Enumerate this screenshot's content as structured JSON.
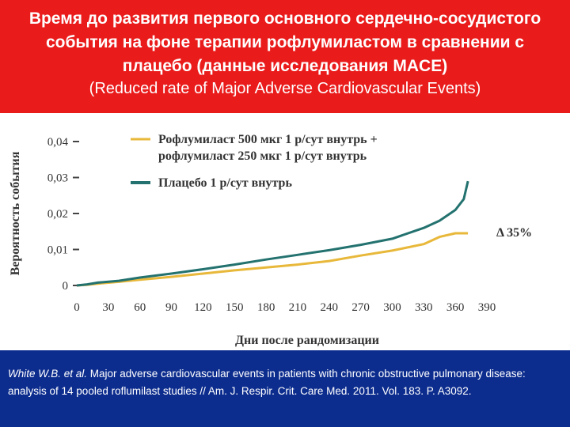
{
  "header": {
    "title": "Время до развития первого основного сердечно-сосудистого события на фоне терапии рофлумиластом в сравнении с плацебо (данные исследования MACE)",
    "subtitle": "(Reduced rate of Major Adverse Cardiovascular Events)",
    "bg_color": "#ea1b1b"
  },
  "footer": {
    "citation_author": "White W.B. et al.",
    "citation_rest": " Major adverse cardiovascular events in patients with chronic obstructive pulmonary disease: analysis of 14 pooled roflumilast studies // Am. J. Respir. Crit. Care Med. 2011. Vol. 183. P. A3092.",
    "bg_color": "#0d2d8e"
  },
  "chart_data": {
    "type": "line",
    "ylabel": "Вероятность события",
    "xlabel": "Дни после рандомизации",
    "x_ticks": [
      0,
      30,
      60,
      90,
      120,
      150,
      180,
      210,
      240,
      270,
      300,
      330,
      360,
      390
    ],
    "x_tick_labels": [
      "0",
      "30",
      "60",
      "90",
      "120",
      "150",
      "180",
      "210",
      "240",
      "270",
      "300",
      "330",
      "360",
      "390"
    ],
    "y_ticks": [
      0,
      0.01,
      0.02,
      0.03,
      0.04
    ],
    "y_tick_labels": [
      "0",
      "0,01",
      "0,02",
      "0,03",
      "0,04"
    ],
    "xlim": [
      0,
      390
    ],
    "ylim": [
      0,
      0.04
    ],
    "grid": false,
    "legend_position": "top",
    "annotation": "Δ 35%",
    "series": [
      {
        "name": "Рофлумиласт 500 мкг 1 р/сут внутрь + рофлумиласт 250 мкг 1 р/сут внутрь",
        "color": "#e8b83a",
        "x": [
          0,
          10,
          20,
          40,
          60,
          90,
          120,
          150,
          180,
          210,
          240,
          270,
          300,
          330,
          345,
          360,
          372
        ],
        "y": [
          0,
          0.0002,
          0.0005,
          0.001,
          0.0016,
          0.0024,
          0.0033,
          0.0042,
          0.005,
          0.0058,
          0.0068,
          0.0083,
          0.0097,
          0.0115,
          0.0135,
          0.0145,
          0.0145
        ]
      },
      {
        "name": "Плацебо 1 р/сут внутрь",
        "color": "#23726f",
        "x": [
          0,
          10,
          20,
          40,
          60,
          90,
          120,
          150,
          180,
          210,
          240,
          270,
          300,
          330,
          345,
          360,
          368,
          372
        ],
        "y": [
          0,
          0.0003,
          0.0008,
          0.0013,
          0.0022,
          0.0033,
          0.0045,
          0.0058,
          0.0072,
          0.0085,
          0.0098,
          0.0113,
          0.013,
          0.016,
          0.018,
          0.021,
          0.024,
          0.029
        ]
      }
    ]
  }
}
